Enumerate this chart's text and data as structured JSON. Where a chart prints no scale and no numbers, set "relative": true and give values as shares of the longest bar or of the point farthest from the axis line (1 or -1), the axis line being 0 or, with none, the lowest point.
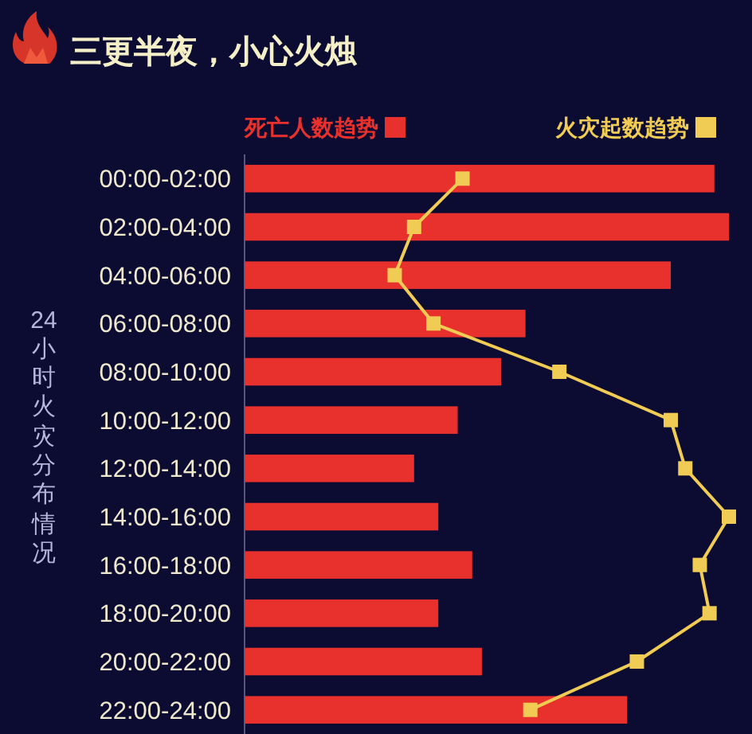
{
  "chart_data": {
    "type": "bar",
    "orientation": "horizontal",
    "relative": true,
    "title": "三更半夜，小心火烛",
    "ylabel": "24小时火灾分布情况",
    "categories": [
      "00:00-02:00",
      "02:00-04:00",
      "04:00-06:00",
      "06:00-08:00",
      "08:00-10:00",
      "10:00-12:00",
      "12:00-14:00",
      "14:00-16:00",
      "16:00-18:00",
      "18:00-20:00",
      "20:00-22:00",
      "22:00-24:00"
    ],
    "series": [
      {
        "name": "死亡人数趋势",
        "color": "#e8312c",
        "values": [
          0.97,
          1.0,
          0.88,
          0.58,
          0.53,
          0.44,
          0.35,
          0.4,
          0.47,
          0.4,
          0.49,
          0.79
        ]
      },
      {
        "name": "火灾起数趋势",
        "type": "line",
        "color": "#f0cc55",
        "values": [
          0.45,
          0.35,
          0.31,
          0.39,
          0.65,
          0.88,
          0.91,
          1.0,
          0.94,
          0.96,
          0.81,
          0.59
        ]
      }
    ],
    "marker": "square",
    "legend": "top"
  }
}
